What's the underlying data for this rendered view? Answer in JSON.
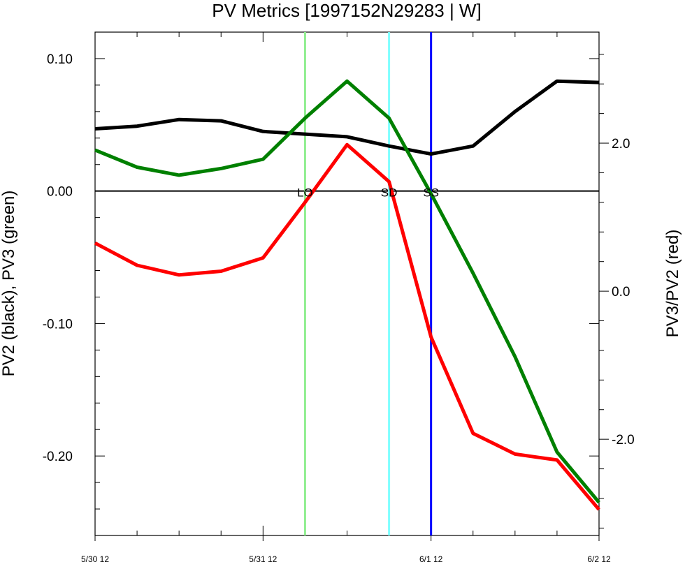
{
  "chart_data": {
    "type": "line",
    "title": "PV Metrics [1997152N29283 | W]",
    "x_tick_labels": [
      "5/30 12",
      "5/31 12",
      "6/1 12",
      "6/2 12"
    ],
    "x_tick_values": [
      0,
      24,
      48,
      72
    ],
    "x_unit": "hours since 5/30 12",
    "xlim": [
      0,
      72
    ],
    "x": [
      0,
      6,
      12,
      18,
      24,
      30,
      36,
      42,
      48,
      54,
      60,
      66,
      72
    ],
    "left_axis": {
      "ylabel": "PV2 (black), PV3 (green)",
      "ylim": [
        -0.26,
        0.12
      ],
      "tick_values": [
        0.1,
        0.0,
        -0.1,
        -0.2
      ],
      "tick_labels": [
        "0.10",
        "0.00",
        "-0.10",
        "-0.20"
      ]
    },
    "right_axis": {
      "ylabel": "PV3/PV2 (red)",
      "ylim": [
        -3.3,
        3.5
      ],
      "tick_values": [
        2.0,
        0.0,
        -2.0
      ],
      "tick_labels": [
        "2.0",
        "0.0",
        "-2.0"
      ]
    },
    "series": [
      {
        "key": "pv2",
        "axis": "left",
        "color": "#000000",
        "values": [
          0.047,
          0.049,
          0.054,
          0.053,
          0.045,
          0.043,
          0.041,
          0.034,
          0.028,
          0.034,
          0.06,
          0.083,
          0.082
        ]
      },
      {
        "key": "pv3",
        "axis": "left",
        "color": "#008000",
        "values": [
          0.031,
          0.018,
          0.012,
          0.017,
          0.024,
          0.055,
          0.083,
          0.055,
          -0.002,
          -0.062,
          -0.125,
          -0.197,
          -0.235
        ]
      },
      {
        "key": "ratio",
        "axis": "right",
        "color": "#ff0000",
        "values": [
          0.65,
          0.35,
          0.22,
          0.27,
          0.45,
          1.2,
          1.98,
          1.48,
          -0.62,
          -1.92,
          -2.2,
          -2.28,
          -2.95
        ]
      }
    ],
    "zero_line": 0,
    "markers": [
      {
        "label": "LO",
        "x": 30,
        "color": "#90ee90"
      },
      {
        "label": "SD",
        "x": 42,
        "color": "#80ffff"
      },
      {
        "label": "SS",
        "x": 48,
        "color": "#0000ff"
      }
    ],
    "grid": false,
    "legend": "none"
  }
}
